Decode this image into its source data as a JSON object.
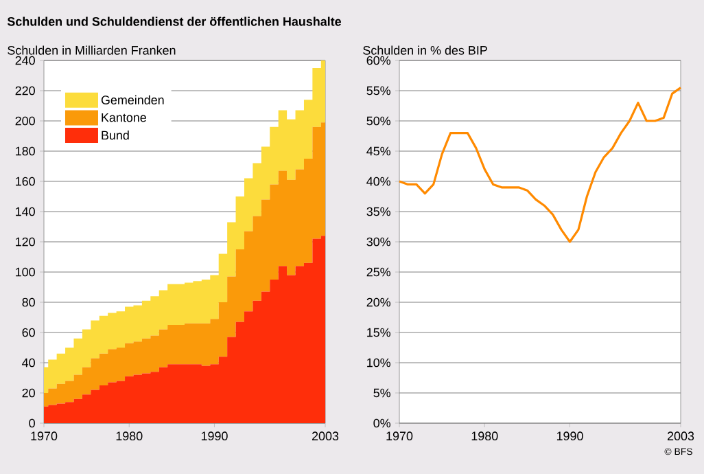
{
  "chart_data": [
    {
      "type": "area",
      "stacked": true,
      "title": "Schulden und Schuldendienst der öffentlichen Haushalte",
      "ylabel": "Schulden in Milliarden Franken",
      "x": [
        1970,
        1971,
        1972,
        1973,
        1974,
        1975,
        1976,
        1977,
        1978,
        1979,
        1980,
        1981,
        1982,
        1983,
        1984,
        1985,
        1986,
        1987,
        1988,
        1989,
        1990,
        1991,
        1992,
        1993,
        1994,
        1995,
        1996,
        1997,
        1998,
        1999,
        2000,
        2001,
        2002,
        2003
      ],
      "series": [
        {
          "name": "Bund",
          "color": "#ff2e0a",
          "values": [
            11,
            12,
            13,
            14,
            16,
            19,
            22,
            25,
            27,
            28,
            31,
            32,
            33,
            34,
            37,
            39,
            39,
            39,
            39,
            38,
            39,
            44,
            57,
            67,
            74,
            81,
            87,
            95,
            104,
            98,
            104,
            106,
            122,
            124
          ]
        },
        {
          "name": "Kantone",
          "color": "#fa9a0a",
          "values": [
            9,
            11,
            13,
            14,
            16,
            18,
            21,
            21,
            22,
            22,
            22,
            22,
            23,
            24,
            25,
            26,
            26,
            27,
            27,
            28,
            30,
            36,
            40,
            48,
            53,
            56,
            61,
            63,
            63,
            63,
            64,
            69,
            74,
            75
          ]
        },
        {
          "name": "Gemeinden",
          "color": "#fcdc3c",
          "values": [
            17,
            19,
            20,
            22,
            24,
            25,
            25,
            25,
            24,
            24,
            24,
            24,
            25,
            26,
            26,
            27,
            27,
            27,
            28,
            29,
            29,
            32,
            36,
            35,
            35,
            35,
            35,
            38,
            40,
            40,
            39,
            39,
            39,
            41
          ]
        }
      ],
      "xlim": [
        1970,
        2003
      ],
      "xticks": [
        1970,
        1980,
        1990,
        2003
      ],
      "ylim": [
        0,
        240
      ],
      "yticks": [
        0,
        20,
        40,
        60,
        80,
        100,
        120,
        140,
        160,
        180,
        200,
        220,
        240
      ],
      "grid": "y",
      "legend": "top left"
    },
    {
      "type": "line",
      "ylabel": "Schulden in % des BIP",
      "annotations": [
        "© BFS"
      ],
      "x": [
        1970,
        1971,
        1972,
        1973,
        1974,
        1975,
        1976,
        1977,
        1978,
        1979,
        1980,
        1981,
        1982,
        1983,
        1984,
        1985,
        1986,
        1987,
        1988,
        1989,
        1990,
        1991,
        1992,
        1993,
        1994,
        1995,
        1996,
        1997,
        1998,
        1999,
        2000,
        2001,
        2002,
        2003
      ],
      "series": [
        {
          "color": "#ff8a00",
          "values": [
            40,
            39.5,
            39.5,
            38,
            39.5,
            44.5,
            48,
            48,
            48,
            45.5,
            42,
            39.5,
            39,
            39,
            39,
            38.5,
            37,
            36,
            34.5,
            32,
            30,
            32,
            37.5,
            41.5,
            44,
            45.5,
            48,
            50,
            53,
            50,
            50,
            50.5,
            54.5,
            55.5
          ]
        }
      ],
      "xlim": [
        1970,
        2003
      ],
      "xticks": [
        1970,
        1980,
        1990,
        2003
      ],
      "ylim": [
        0,
        60
      ],
      "yticks": [
        {
          "value": 0,
          "label": "0%"
        },
        {
          "value": 5,
          "label": "5%"
        },
        {
          "value": 10,
          "label": "10%"
        },
        {
          "value": 15,
          "label": "15%"
        },
        {
          "value": 20,
          "label": "20%"
        },
        {
          "value": 25,
          "label": "25%"
        },
        {
          "value": 30,
          "label": "30%"
        },
        {
          "value": 35,
          "label": "35%"
        },
        {
          "value": 40,
          "label": "40%"
        },
        {
          "value": 45,
          "label": "45%"
        },
        {
          "value": 50,
          "label": "50%"
        },
        {
          "value": 55,
          "label": "55%"
        },
        {
          "value": 60,
          "label": "60%"
        }
      ],
      "grid": "y"
    }
  ]
}
